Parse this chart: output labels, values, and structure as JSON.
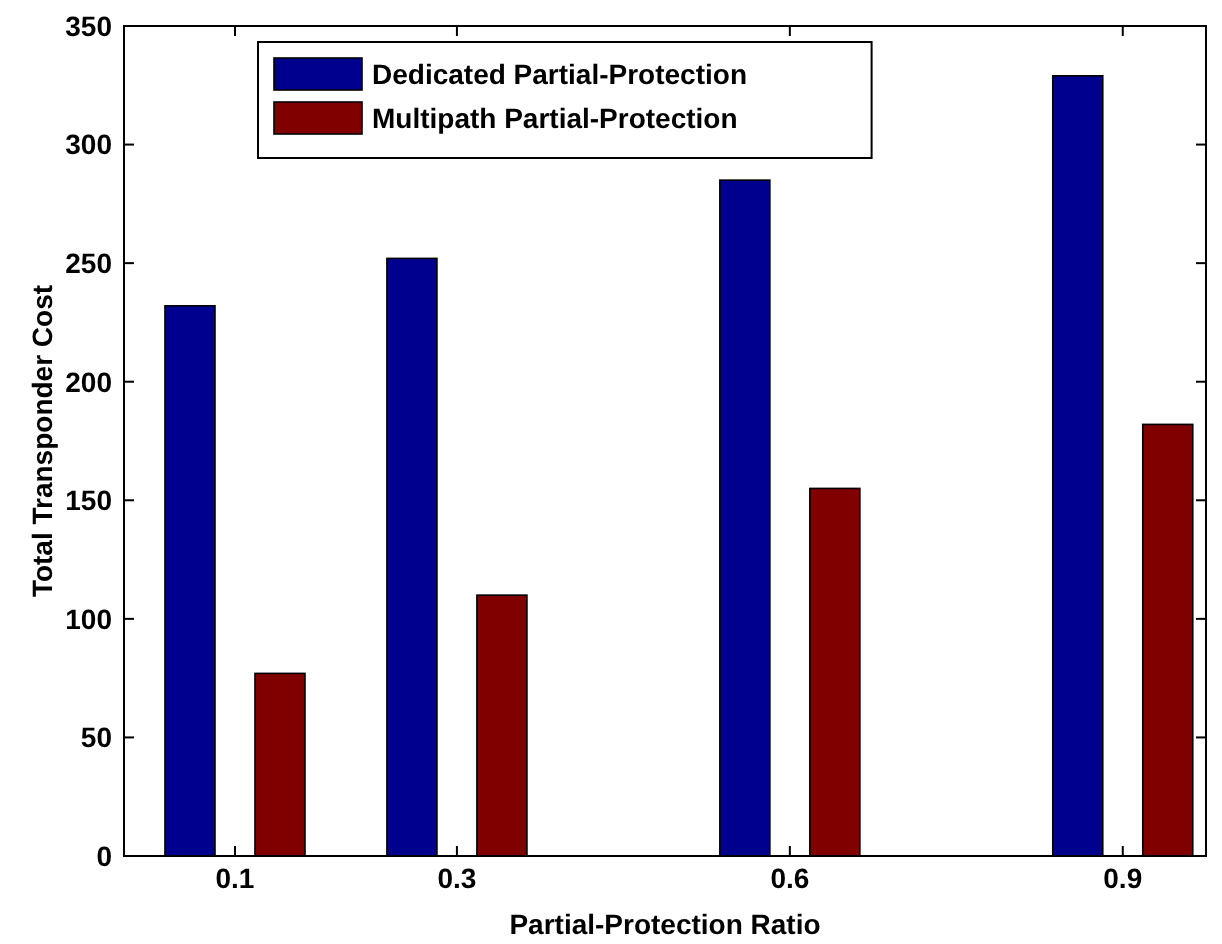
{
  "chart_data": {
    "type": "bar",
    "xlabel": "Partial-Protection Ratio",
    "ylabel": "Total Transponder Cost",
    "x": [
      0.1,
      0.3,
      0.6,
      0.9
    ],
    "series": [
      {
        "name": "Dedicated Partial-Protection",
        "color": "#00008f",
        "values": [
          232,
          252,
          285,
          329
        ]
      },
      {
        "name": "Multipath Partial-Protection",
        "color": "#800000",
        "values": [
          77,
          110,
          155,
          182
        ]
      }
    ],
    "xlim": [
      0,
      0.975
    ],
    "xticks": [
      0.1,
      0.3,
      0.6,
      0.9
    ],
    "ylim": [
      0,
      350
    ],
    "yticks": [
      0,
      50,
      100,
      150,
      200,
      250,
      300,
      350
    ],
    "grid": false,
    "legend": "top left"
  }
}
